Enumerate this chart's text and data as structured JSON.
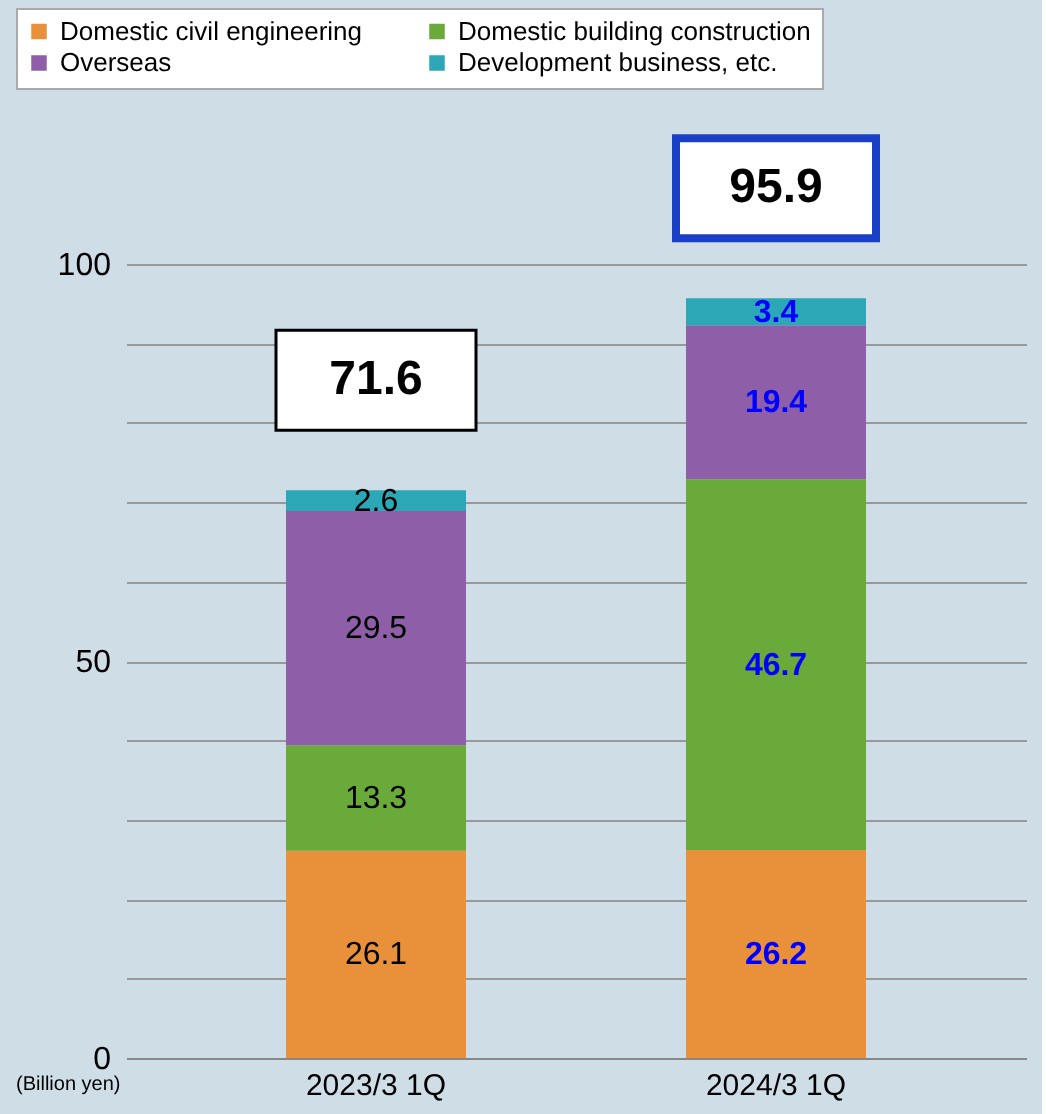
{
  "chart_data": {
    "type": "bar",
    "stacked": true,
    "categories": [
      "2023/3 1Q",
      "2024/3 1Q"
    ],
    "series": [
      {
        "name": "Domestic civil engineering",
        "color": "#e8913a",
        "values": [
          26.1,
          26.2
        ]
      },
      {
        "name": "Domestic building construction",
        "color": "#6aaa3a",
        "values": [
          13.3,
          46.7
        ]
      },
      {
        "name": "Overseas",
        "color": "#8e5fa8",
        "values": [
          29.5,
          19.4
        ]
      },
      {
        "name": "Development business, etc.",
        "color": "#2ba7b5",
        "values": [
          2.6,
          3.4
        ]
      }
    ],
    "totals": [
      "71.6",
      "95.9"
    ],
    "data_labels": true,
    "ylim": [
      0,
      100
    ],
    "yticks": [
      0,
      {
        "value": 10,
        "label": null
      },
      {
        "value": 20,
        "label": null
      },
      {
        "value": 30,
        "label": null
      },
      {
        "value": 40,
        "label": null
      },
      50,
      {
        "value": 60,
        "label": null
      },
      {
        "value": 70,
        "label": null
      },
      {
        "value": 80,
        "label": null
      },
      {
        "value": 90,
        "label": null
      },
      100
    ],
    "grid": "y",
    "legend": "top",
    "annotations": [
      "(Billion yen)"
    ]
  }
}
